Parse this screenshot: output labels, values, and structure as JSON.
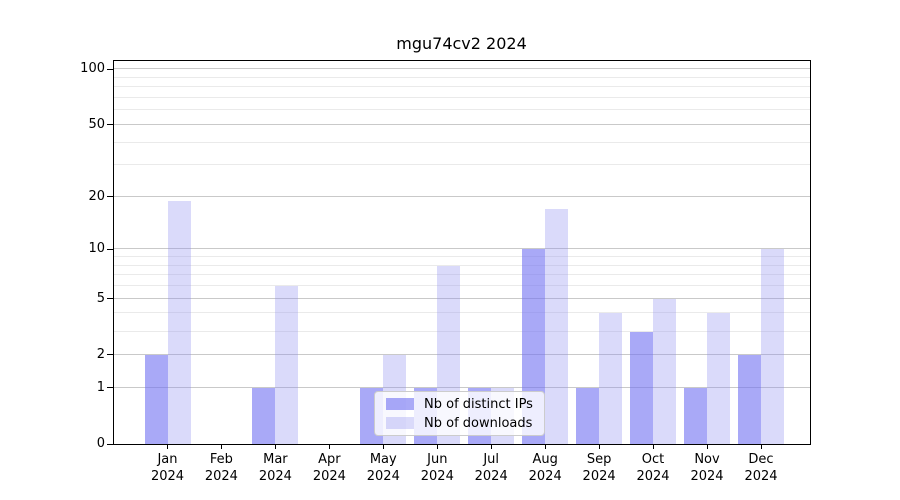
{
  "chart_data": {
    "type": "bar",
    "title": "mgu74cv2 2024",
    "categories": [
      "Jan",
      "Feb",
      "Mar",
      "Apr",
      "May",
      "Jun",
      "Jul",
      "Aug",
      "Sep",
      "Oct",
      "Nov",
      "Dec"
    ],
    "year_label": "2024",
    "series": [
      {
        "name": "Nb of distinct IPs",
        "color": "rgba(116,116,242,0.62)",
        "values": [
          2,
          0,
          1,
          0,
          1,
          1,
          1,
          10,
          1,
          3,
          1,
          2
        ]
      },
      {
        "name": "Nb of downloads",
        "color": "rgba(140,140,240,0.32)",
        "values": [
          19,
          0,
          6,
          0,
          2,
          8,
          1,
          17,
          4,
          5,
          4,
          10
        ]
      }
    ],
    "y_scale": "log10(1+value)",
    "y_ticks": [
      0,
      1,
      2,
      5,
      10,
      20,
      50,
      100
    ],
    "y_minor_gridlines": [
      3,
      4,
      6,
      7,
      8,
      9,
      30,
      40,
      60,
      70,
      80,
      90
    ],
    "y_axis_top_value": 111,
    "ylim": [
      0,
      111
    ],
    "xlabel": "",
    "ylabel": "",
    "grid": true,
    "legend_position": "lower center",
    "colors": {
      "major_grid": "#c9c9c9",
      "minor_grid": "#eaeaea",
      "axis": "#000000",
      "background": "#ffffff"
    }
  }
}
